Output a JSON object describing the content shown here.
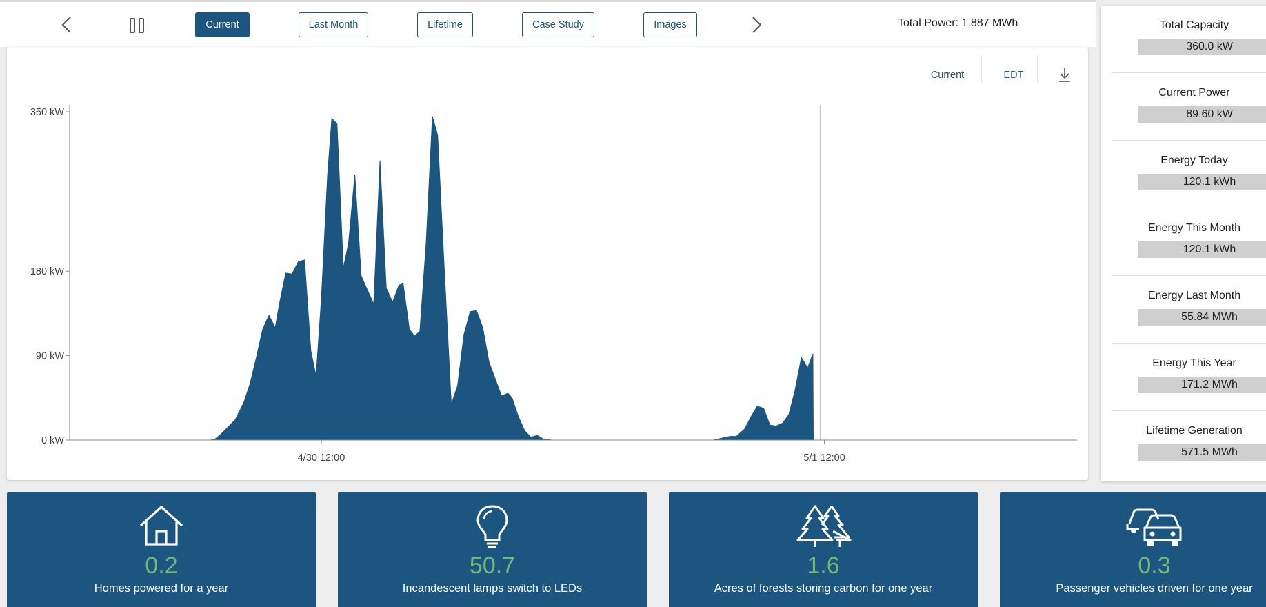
{
  "toolbar": {
    "prev_label": "‹",
    "next_label": "›",
    "tabs": [
      {
        "label": "Current",
        "active": true
      },
      {
        "label": "Last Month",
        "active": false
      },
      {
        "label": "Lifetime",
        "active": false
      },
      {
        "label": "Case Study",
        "active": false
      },
      {
        "label": "Images",
        "active": false
      }
    ],
    "total_power": "Total Power: 1.887 MWh"
  },
  "chart_tools": {
    "range_label": "Current",
    "timezone_label": "EDT",
    "download_icon": "download-icon"
  },
  "chart_data": {
    "type": "area",
    "title": "",
    "xlabel": "",
    "ylabel": "",
    "y_ticks": [
      {
        "value": 0,
        "label": "0 kW"
      },
      {
        "value": 90,
        "label": "90 kW"
      },
      {
        "value": 180,
        "label": "180 kW"
      },
      {
        "value": 350,
        "label": "350 kW"
      }
    ],
    "x_ticks": [
      {
        "hour": 12,
        "label": "4/30 12:00"
      },
      {
        "hour": 36,
        "label": "5/1 12:00"
      }
    ],
    "y_scale_top": 350,
    "current_time_hour": 35.8,
    "series": [
      {
        "color": "#1b5580",
        "points": [
          [
            0,
            0
          ],
          [
            6.7,
            0
          ],
          [
            6.9,
            0.5
          ],
          [
            7.2,
            6
          ],
          [
            7.6,
            15
          ],
          [
            7.9,
            22
          ],
          [
            8.3,
            40
          ],
          [
            8.6,
            60
          ],
          [
            8.9,
            88
          ],
          [
            9.2,
            118
          ],
          [
            9.5,
            133
          ],
          [
            9.8,
            120
          ],
          [
            10.0,
            145
          ],
          [
            10.3,
            178
          ],
          [
            10.6,
            177
          ],
          [
            10.9,
            190
          ],
          [
            11.2,
            192
          ],
          [
            11.5,
            95
          ],
          [
            11.75,
            68
          ],
          [
            12.0,
            150
          ],
          [
            12.3,
            283
          ],
          [
            12.5,
            343
          ],
          [
            12.75,
            337
          ],
          [
            13.05,
            183
          ],
          [
            13.3,
            210
          ],
          [
            13.6,
            283
          ],
          [
            13.9,
            175
          ],
          [
            14.2,
            160
          ],
          [
            14.5,
            145
          ],
          [
            14.8,
            298
          ],
          [
            15.1,
            162
          ],
          [
            15.4,
            147
          ],
          [
            15.7,
            165
          ],
          [
            15.9,
            167
          ],
          [
            16.2,
            118
          ],
          [
            16.45,
            111
          ],
          [
            16.7,
            116
          ],
          [
            17.0,
            210
          ],
          [
            17.3,
            345
          ],
          [
            17.55,
            325
          ],
          [
            17.85,
            190
          ],
          [
            18.2,
            38
          ],
          [
            18.5,
            58
          ],
          [
            18.8,
            112
          ],
          [
            19.1,
            137
          ],
          [
            19.4,
            138
          ],
          [
            19.7,
            120
          ],
          [
            20.0,
            83
          ],
          [
            20.3,
            65
          ],
          [
            20.6,
            47
          ],
          [
            20.9,
            50
          ],
          [
            21.1,
            45
          ],
          [
            21.4,
            25
          ],
          [
            21.7,
            10
          ],
          [
            22.0,
            3
          ],
          [
            22.3,
            5
          ],
          [
            22.6,
            1
          ],
          [
            23.0,
            0
          ],
          [
            30.7,
            0
          ],
          [
            31.1,
            2
          ],
          [
            31.5,
            4
          ],
          [
            31.8,
            4
          ],
          [
            32.2,
            12
          ],
          [
            32.5,
            25
          ],
          [
            32.8,
            36
          ],
          [
            33.1,
            34
          ],
          [
            33.4,
            16
          ],
          [
            33.7,
            15
          ],
          [
            34.0,
            18
          ],
          [
            34.3,
            27
          ],
          [
            34.6,
            53
          ],
          [
            34.9,
            88
          ],
          [
            35.2,
            77
          ],
          [
            35.45,
            92
          ],
          [
            35.47,
            0
          ]
        ]
      }
    ]
  },
  "stats": [
    {
      "label": "Total Capacity",
      "value": "360.0 kW"
    },
    {
      "label": "Current Power",
      "value": "89.60 kW"
    },
    {
      "label": "Energy Today",
      "value": "120.1 kWh"
    },
    {
      "label": "Energy This Month",
      "value": "120.1 kWh"
    },
    {
      "label": "Energy Last Month",
      "value": "55.84 MWh"
    },
    {
      "label": "Energy This Year",
      "value": "171.2 MWh"
    },
    {
      "label": "Lifetime Generation",
      "value": "571.5 MWh"
    }
  ],
  "equivalents": [
    {
      "icon": "house-icon",
      "value": "0.2",
      "label": "Homes powered for a year"
    },
    {
      "icon": "lightbulb-icon",
      "value": "50.7",
      "label": "Incandescent lamps switch to LEDs"
    },
    {
      "icon": "trees-icon",
      "value": "1.6",
      "label": "Acres of forests storing carbon for one year"
    },
    {
      "icon": "cars-icon",
      "value": "0.3",
      "label": "Passenger vehicles driven for one year"
    }
  ],
  "colors": {
    "brand": "#1b5580",
    "accent_green": "#6fba76"
  }
}
